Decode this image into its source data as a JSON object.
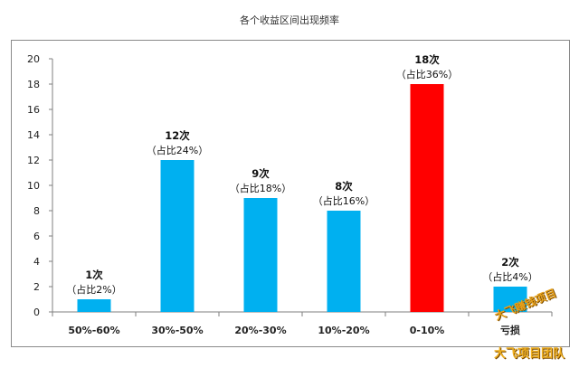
{
  "chart_data": {
    "type": "bar",
    "title": "各个收益区间出现频率",
    "xlabel": "",
    "ylabel": "",
    "ylim": [
      0,
      20
    ],
    "yticks": [
      0,
      2,
      4,
      6,
      8,
      10,
      12,
      14,
      16,
      18,
      20
    ],
    "categories": [
      "50%-60%",
      "30%-50%",
      "20%-30%",
      "10%-20%",
      "0-10%",
      "亏损"
    ],
    "values": [
      1,
      12,
      9,
      8,
      18,
      2
    ],
    "count_labels": [
      "1次",
      "12次",
      "9次",
      "8次",
      "18次",
      "2次"
    ],
    "share_labels": [
      "（占比2%）",
      "（占比24%）",
      "（占比18%）",
      "（占比16%）",
      "（占比36%）",
      "（占比4%）"
    ],
    "bar_colors": [
      "#00b0f0",
      "#00b0f0",
      "#00b0f0",
      "#00b0f0",
      "#ff0000",
      "#00b0f0"
    ],
    "grid": false
  },
  "watermark": {
    "line1": "大飞赚钱项目",
    "line2": "大飞项目团队"
  }
}
